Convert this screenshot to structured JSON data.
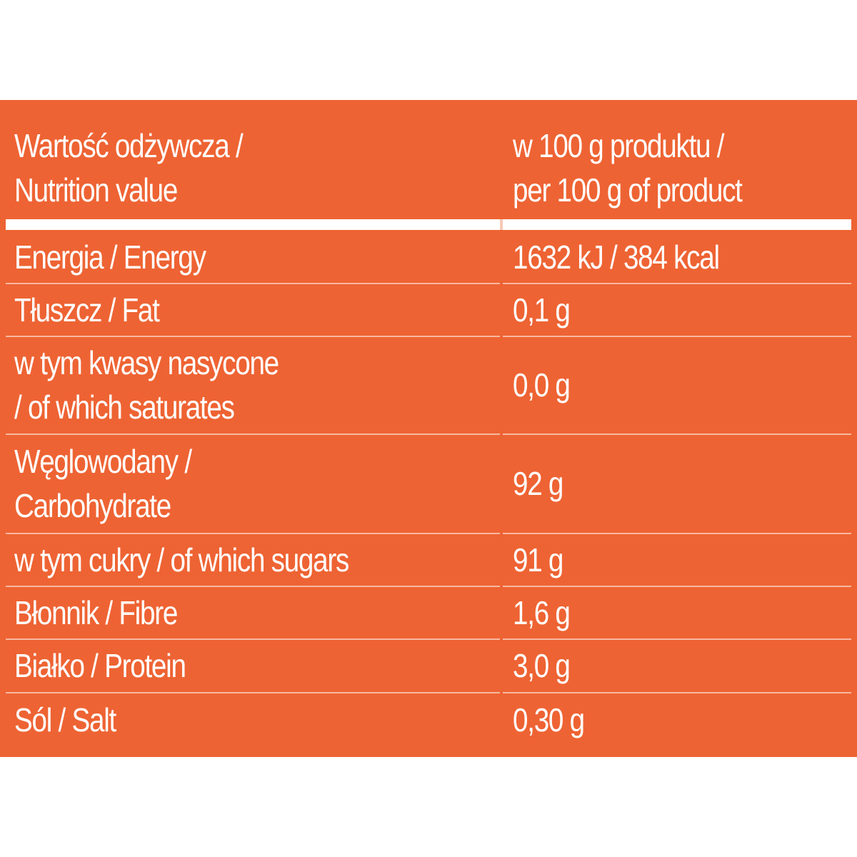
{
  "table": {
    "header": {
      "left": [
        "Wartość odżywcza /",
        "Nutrition value"
      ],
      "right": [
        "w 100 g produktu /",
        "per 100 g of product"
      ]
    },
    "rows": [
      {
        "label": [
          "Energia / Energy"
        ],
        "value": "1632 kJ / 384 kcal"
      },
      {
        "label": [
          "Tłuszcz / Fat"
        ],
        "value": "0,1 g"
      },
      {
        "label": [
          "w tym kwasy nasycone",
          "/ of which saturates"
        ],
        "value": "0,0 g"
      },
      {
        "label": [
          "Węglowodany /",
          "Carbohydrate"
        ],
        "value": "92 g"
      },
      {
        "label": [
          "w tym cukry / of which sugars"
        ],
        "value": "91 g"
      },
      {
        "label": [
          "Błonnik / Fibre"
        ],
        "value": "1,6 g"
      },
      {
        "label": [
          "Białko / Protein"
        ],
        "value": "3,0 g"
      },
      {
        "label": [
          "Sól / Salt"
        ],
        "value": "0,30 g"
      }
    ]
  },
  "colors": {
    "background": "#ee6333",
    "text": "#ffffff",
    "divider": "#f7b8a0"
  }
}
